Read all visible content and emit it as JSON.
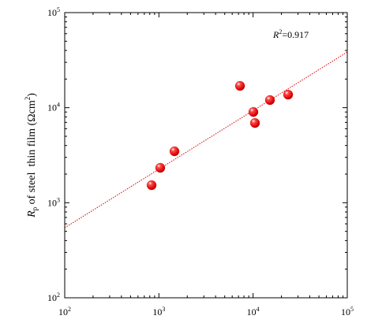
{
  "chart_data": {
    "type": "scatter",
    "y_label": {
      "symbol": "R",
      "subscript": "p",
      "text": " of steel  thin film (Ωcm",
      "superscript": "2",
      "end": ")"
    },
    "annotation": {
      "symbol": "R",
      "superscript": "2",
      "text": "=0.917"
    },
    "x_scale": "log",
    "y_scale": "log",
    "xlim": [
      100,
      100000
    ],
    "ylim": [
      100,
      100000
    ],
    "xticks": [
      {
        "value": 100,
        "label": "10",
        "exponent": "2"
      },
      {
        "value": 1000,
        "label": "10",
        "exponent": "3"
      },
      {
        "value": 10000,
        "label": "10",
        "exponent": "4"
      },
      {
        "value": 100000,
        "label": "10",
        "exponent": "5"
      }
    ],
    "yticks": [
      {
        "value": 100,
        "label": "10",
        "exponent": "2"
      },
      {
        "value": 1000,
        "label": "10",
        "exponent": "3"
      },
      {
        "value": 10000,
        "label": "10",
        "exponent": "4"
      },
      {
        "value": 100000,
        "label": "10",
        "exponent": "5"
      }
    ],
    "x": [
      836,
      1033,
      1463,
      7260,
      10070,
      10470,
      15100,
      23550
    ],
    "values": [
      1530,
      2330,
      3475,
      16940,
      9020,
      6900,
      12030,
      13700
    ],
    "color": "#e00000",
    "fit_line": {
      "x": [
        100,
        100000
      ],
      "y": [
        545,
        38500
      ],
      "color": "#e00000"
    }
  }
}
